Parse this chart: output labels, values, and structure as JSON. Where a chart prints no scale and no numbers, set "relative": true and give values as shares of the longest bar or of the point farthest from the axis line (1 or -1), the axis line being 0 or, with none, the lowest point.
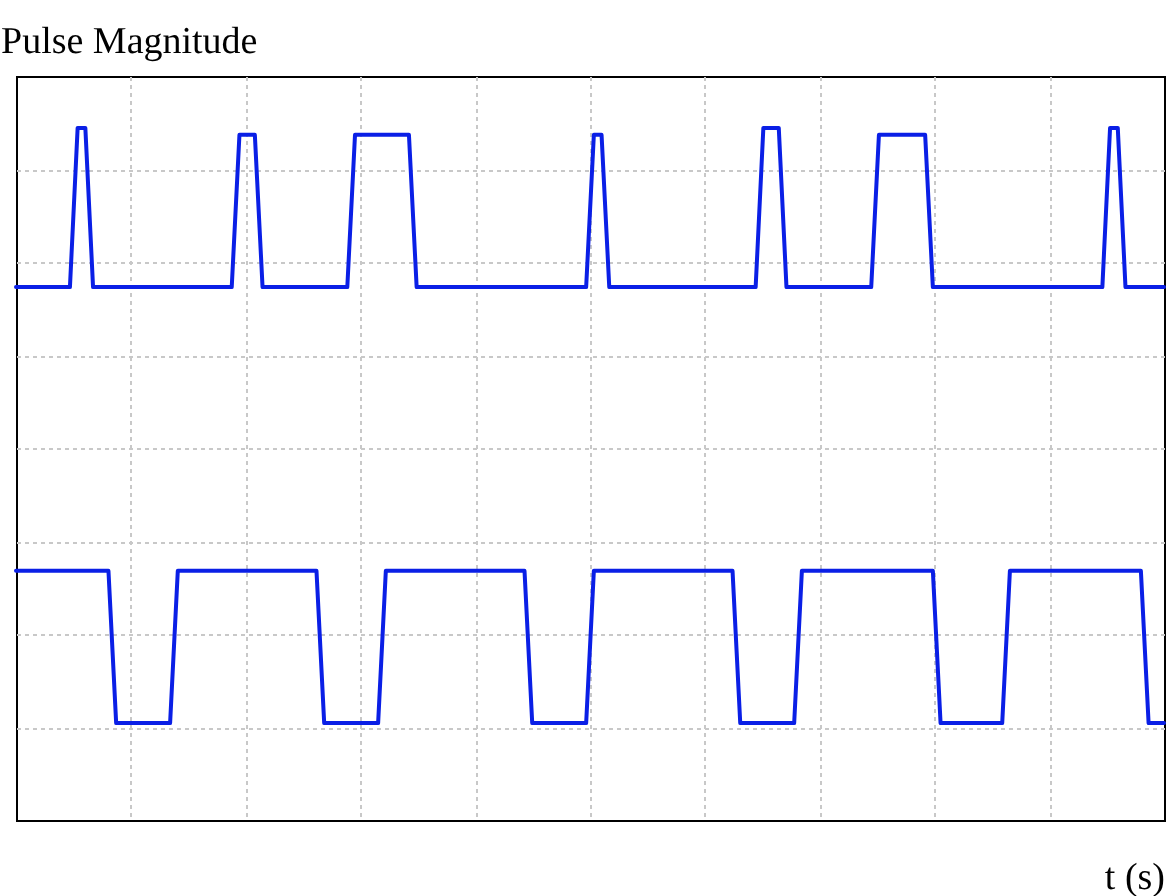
{
  "chart_data": {
    "type": "line",
    "ylabel": "Pulse Magnitude",
    "xlabel": "t (s)",
    "relative": true,
    "grid": true,
    "tick_labels": false,
    "line_style": "solid",
    "marker": "none",
    "categories": [
      null,
      null,
      null,
      null,
      null,
      null,
      null,
      null,
      null,
      null,
      null,
      null,
      null,
      null,
      null,
      null,
      null,
      null,
      null,
      null,
      null,
      null,
      null,
      null,
      null,
      null,
      null,
      null,
      null,
      null,
      null,
      null,
      null,
      null,
      null,
      null,
      null,
      null,
      null,
      null,
      null,
      null,
      null,
      null,
      null,
      null,
      null,
      null,
      null,
      null,
      null,
      null,
      null,
      null,
      null,
      null,
      null,
      null,
      null,
      null,
      null,
      null,
      null,
      null,
      null,
      null,
      null,
      null,
      null,
      null,
      null,
      null,
      null,
      null,
      null,
      null,
      null,
      null,
      null,
      null,
      null,
      null,
      null,
      null,
      null,
      null,
      null,
      null,
      null,
      null,
      null,
      null,
      null,
      null,
      null,
      null,
      null,
      null,
      null,
      null,
      null,
      null,
      null,
      null,
      null,
      null,
      null,
      null,
      null,
      null,
      null,
      null,
      null,
      null,
      null,
      null,
      null,
      null,
      null,
      null,
      null,
      null,
      null,
      null,
      null,
      null,
      null,
      null,
      null,
      null,
      null,
      null,
      null,
      null,
      null,
      null,
      null,
      null,
      null,
      null,
      null,
      null,
      null,
      null,
      null,
      null,
      null,
      null,
      null,
      null
    ],
    "series": [
      {
        "color": "#0a1fe6",
        "values": [
          0.77,
          0.77,
          0.77,
          0.77,
          0.77,
          0.77,
          0.77,
          0.77,
          1,
          1,
          0.77,
          0.77,
          0.77,
          0.77,
          0.77,
          0.77,
          0.77,
          0.77,
          0.77,
          0.77,
          0.77,
          0.77,
          0.77,
          0.77,
          0.77,
          0.77,
          0.77,
          0.77,
          0.77,
          0.99,
          0.99,
          0.99,
          0.77,
          0.77,
          0.77,
          0.77,
          0.77,
          0.77,
          0.77,
          0.77,
          0.77,
          0.77,
          0.77,
          0.77,
          0.99,
          0.99,
          0.99,
          0.99,
          0.99,
          0.99,
          0.99,
          0.99,
          0.77,
          0.77,
          0.77,
          0.77,
          0.77,
          0.77,
          0.77,
          0.77,
          0.77,
          0.77,
          0.77,
          0.77,
          0.77,
          0.77,
          0.77,
          0.77,
          0.77,
          0.77,
          0.77,
          0.77,
          0.77,
          0.77,
          0.77,
          0.99,
          0.99,
          0.77,
          0.77,
          0.77,
          0.77,
          0.77,
          0.77,
          0.77,
          0.77,
          0.77,
          0.77,
          0.77,
          0.77,
          0.77,
          0.77,
          0.77,
          0.77,
          0.77,
          0.77,
          0.77,
          0.77,
          1,
          1,
          1,
          0.77,
          0.77,
          0.77,
          0.77,
          0.77,
          0.77,
          0.77,
          0.77,
          0.77,
          0.77,
          0.77,
          0.77,
          0.99,
          0.99,
          0.99,
          0.99,
          0.99,
          0.99,
          0.99,
          0.77,
          0.77,
          0.77,
          0.77,
          0.77,
          0.77,
          0.77,
          0.77,
          0.77,
          0.77,
          0.77,
          0.77,
          0.77,
          0.77,
          0.77,
          0.77,
          0.77,
          0.77,
          0.77,
          0.77,
          0.77,
          0.77,
          0.77,
          1,
          1,
          0.77,
          0.77,
          0.77,
          0.77,
          0.77,
          0.77
        ]
      },
      {
        "color": "#0a1fe6",
        "values": [
          0.36,
          0.36,
          0.36,
          0.36,
          0.36,
          0.36,
          0.36,
          0.36,
          0.36,
          0.36,
          0.36,
          0.36,
          0.36,
          0.14,
          0.14,
          0.14,
          0.14,
          0.14,
          0.14,
          0.14,
          0.14,
          0.36,
          0.36,
          0.36,
          0.36,
          0.36,
          0.36,
          0.36,
          0.36,
          0.36,
          0.36,
          0.36,
          0.36,
          0.36,
          0.36,
          0.36,
          0.36,
          0.36,
          0.36,
          0.36,
          0.14,
          0.14,
          0.14,
          0.14,
          0.14,
          0.14,
          0.14,
          0.14,
          0.36,
          0.36,
          0.36,
          0.36,
          0.36,
          0.36,
          0.36,
          0.36,
          0.36,
          0.36,
          0.36,
          0.36,
          0.36,
          0.36,
          0.36,
          0.36,
          0.36,
          0.36,
          0.36,
          0.14,
          0.14,
          0.14,
          0.14,
          0.14,
          0.14,
          0.14,
          0.14,
          0.36,
          0.36,
          0.36,
          0.36,
          0.36,
          0.36,
          0.36,
          0.36,
          0.36,
          0.36,
          0.36,
          0.36,
          0.36,
          0.36,
          0.36,
          0.36,
          0.36,
          0.36,
          0.36,
          0.14,
          0.14,
          0.14,
          0.14,
          0.14,
          0.14,
          0.14,
          0.14,
          0.36,
          0.36,
          0.36,
          0.36,
          0.36,
          0.36,
          0.36,
          0.36,
          0.36,
          0.36,
          0.36,
          0.36,
          0.36,
          0.36,
          0.36,
          0.36,
          0.36,
          0.36,
          0.14,
          0.14,
          0.14,
          0.14,
          0.14,
          0.14,
          0.14,
          0.14,
          0.14,
          0.36,
          0.36,
          0.36,
          0.36,
          0.36,
          0.36,
          0.36,
          0.36,
          0.36,
          0.36,
          0.36,
          0.36,
          0.36,
          0.36,
          0.36,
          0.36,
          0.36,
          0.36,
          0.14,
          0.14,
          0.14
        ]
      }
    ]
  }
}
